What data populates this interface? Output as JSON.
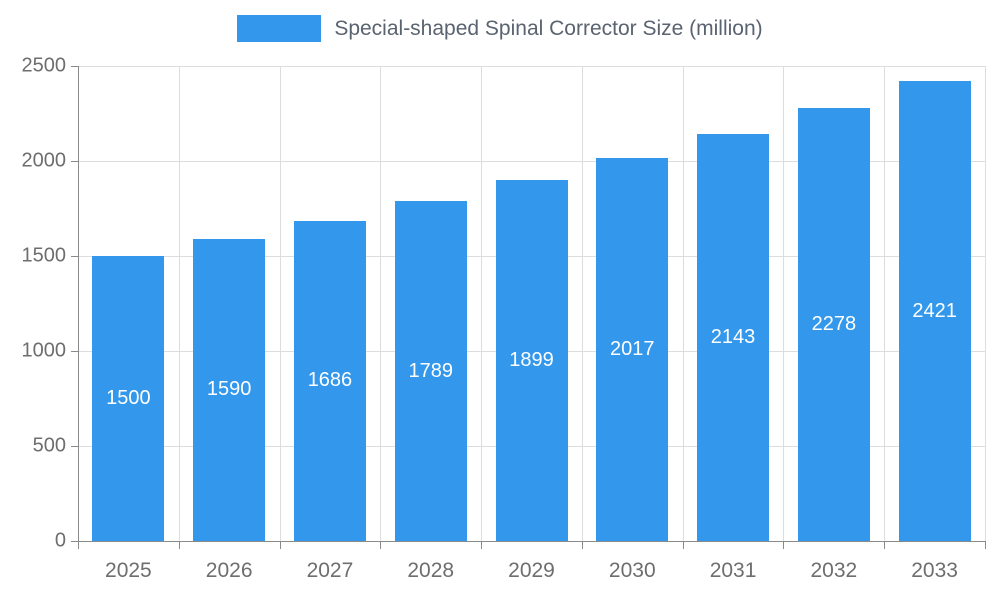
{
  "chart_data": {
    "type": "bar",
    "title": "Special-shaped Spinal Corrector Size (million)",
    "categories": [
      "2025",
      "2026",
      "2027",
      "2028",
      "2029",
      "2030",
      "2031",
      "2032",
      "2033"
    ],
    "values": [
      1500,
      1590,
      1686,
      1789,
      1899,
      2017,
      2143,
      2278,
      2421
    ],
    "xlabel": "",
    "ylabel": "",
    "ylim": [
      0,
      2500
    ],
    "yticks": [
      0,
      500,
      1000,
      1500,
      2000,
      2500
    ],
    "grid": true,
    "legend_position": "top",
    "bar_color": "#3398EC",
    "value_label_color": "#ffffff",
    "grid_color": "#dddddd",
    "axis_color": "#8a8a8a"
  }
}
